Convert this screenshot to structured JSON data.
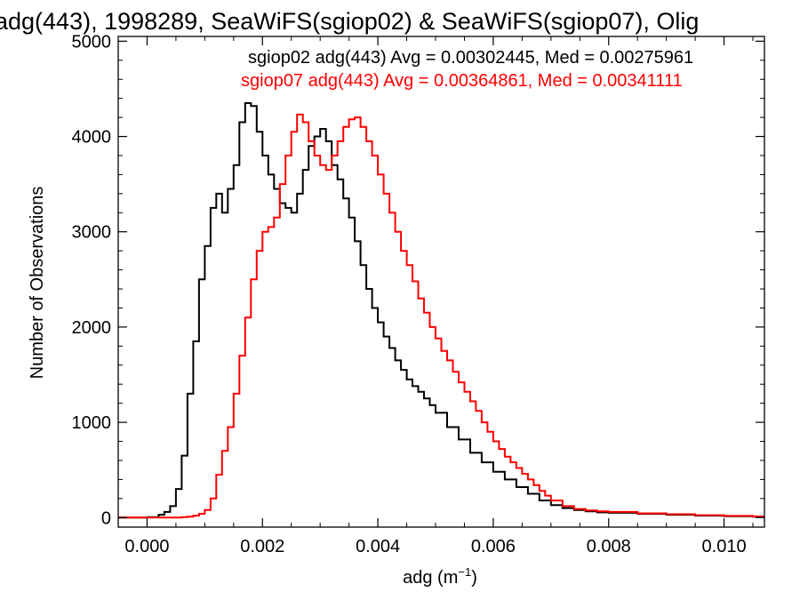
{
  "chart_data": {
    "type": "line",
    "title": "adg(443), 1998289, SeaWiFS(sgiop02) & SeaWiFS(sgiop07), Olig",
    "xlabel": "adg (m",
    "xlabel_sup": "−1",
    "xlabel_close": ")",
    "ylabel": "Number of Observations",
    "xlim": [
      -0.0005,
      0.0107
    ],
    "ylim": [
      -100,
      5050
    ],
    "xticks": [
      0.0,
      0.002,
      0.004,
      0.006,
      0.008,
      0.01
    ],
    "xtick_labels": [
      "0.000",
      "0.002",
      "0.004",
      "0.006",
      "0.008",
      "0.010"
    ],
    "yticks": [
      0,
      1000,
      2000,
      3000,
      4000,
      5000
    ],
    "ytick_labels": [
      "0",
      "1000",
      "2000",
      "3000",
      "4000",
      "5000"
    ],
    "grid": false,
    "legend_position": "top-right",
    "series": [
      {
        "name": "sgiop02 adg(443) Avg = 0.00302445, Med = 0.00275961",
        "color": "#000000",
        "points": [
          [
            -0.0005,
            0
          ],
          [
            0.0,
            5
          ],
          [
            0.0002,
            30
          ],
          [
            0.0003,
            60
          ],
          [
            0.0004,
            120
          ],
          [
            0.0005,
            300
          ],
          [
            0.0006,
            650
          ],
          [
            0.0007,
            1300
          ],
          [
            0.0008,
            1850
          ],
          [
            0.0009,
            2500
          ],
          [
            0.001,
            2850
          ],
          [
            0.0011,
            3250
          ],
          [
            0.0012,
            3400
          ],
          [
            0.0013,
            3200
          ],
          [
            0.0014,
            3450
          ],
          [
            0.0015,
            3700
          ],
          [
            0.0016,
            4150
          ],
          [
            0.0017,
            4350
          ],
          [
            0.0018,
            4320
          ],
          [
            0.0019,
            4050
          ],
          [
            0.002,
            3800
          ],
          [
            0.0021,
            3600
          ],
          [
            0.0022,
            3450
          ],
          [
            0.0023,
            3300
          ],
          [
            0.0024,
            3250
          ],
          [
            0.0025,
            3200
          ],
          [
            0.0026,
            3400
          ],
          [
            0.0027,
            3650
          ],
          [
            0.0028,
            3900
          ],
          [
            0.0029,
            4000
          ],
          [
            0.003,
            4080
          ],
          [
            0.0031,
            3950
          ],
          [
            0.0032,
            3700
          ],
          [
            0.0033,
            3550
          ],
          [
            0.0034,
            3350
          ],
          [
            0.0035,
            3150
          ],
          [
            0.0036,
            2900
          ],
          [
            0.0037,
            2650
          ],
          [
            0.0038,
            2400
          ],
          [
            0.0039,
            2200
          ],
          [
            0.004,
            2050
          ],
          [
            0.0041,
            1900
          ],
          [
            0.0042,
            1780
          ],
          [
            0.0043,
            1650
          ],
          [
            0.0044,
            1550
          ],
          [
            0.0045,
            1450
          ],
          [
            0.0046,
            1380
          ],
          [
            0.0047,
            1320
          ],
          [
            0.0048,
            1250
          ],
          [
            0.0049,
            1180
          ],
          [
            0.005,
            1100
          ],
          [
            0.0052,
            950
          ],
          [
            0.0054,
            820
          ],
          [
            0.0056,
            680
          ],
          [
            0.0058,
            580
          ],
          [
            0.006,
            480
          ],
          [
            0.0062,
            400
          ],
          [
            0.0064,
            320
          ],
          [
            0.0066,
            250
          ],
          [
            0.0068,
            180
          ],
          [
            0.007,
            130
          ],
          [
            0.0072,
            100
          ],
          [
            0.0074,
            80
          ],
          [
            0.0076,
            65
          ],
          [
            0.0078,
            55
          ],
          [
            0.008,
            50
          ],
          [
            0.0085,
            40
          ],
          [
            0.009,
            30
          ],
          [
            0.0095,
            20
          ],
          [
            0.01,
            15
          ],
          [
            0.0105,
            10
          ]
        ]
      },
      {
        "name": "sgiop07 adg(443) Avg = 0.00364861, Med = 0.00341111",
        "color": "#ff0000",
        "points": [
          [
            -0.0005,
            0
          ],
          [
            0.0005,
            0
          ],
          [
            0.0006,
            5
          ],
          [
            0.0007,
            10
          ],
          [
            0.0008,
            20
          ],
          [
            0.0009,
            40
          ],
          [
            0.001,
            80
          ],
          [
            0.0011,
            200
          ],
          [
            0.0012,
            450
          ],
          [
            0.0013,
            700
          ],
          [
            0.0014,
            950
          ],
          [
            0.0015,
            1300
          ],
          [
            0.0016,
            1700
          ],
          [
            0.0017,
            2100
          ],
          [
            0.0018,
            2500
          ],
          [
            0.0019,
            2800
          ],
          [
            0.002,
            3000
          ],
          [
            0.0021,
            3050
          ],
          [
            0.0022,
            3150
          ],
          [
            0.0023,
            3500
          ],
          [
            0.0024,
            3800
          ],
          [
            0.0025,
            4050
          ],
          [
            0.0026,
            4230
          ],
          [
            0.0027,
            4150
          ],
          [
            0.0028,
            3950
          ],
          [
            0.0029,
            3800
          ],
          [
            0.003,
            3700
          ],
          [
            0.0031,
            3650
          ],
          [
            0.0032,
            3800
          ],
          [
            0.0033,
            3950
          ],
          [
            0.0034,
            4100
          ],
          [
            0.0035,
            4180
          ],
          [
            0.0036,
            4200
          ],
          [
            0.0037,
            4100
          ],
          [
            0.0038,
            3950
          ],
          [
            0.0039,
            3800
          ],
          [
            0.004,
            3600
          ],
          [
            0.0041,
            3400
          ],
          [
            0.0042,
            3200
          ],
          [
            0.0043,
            3000
          ],
          [
            0.0044,
            2800
          ],
          [
            0.0045,
            2650
          ],
          [
            0.0046,
            2480
          ],
          [
            0.0047,
            2300
          ],
          [
            0.0048,
            2150
          ],
          [
            0.0049,
            2000
          ],
          [
            0.005,
            1880
          ],
          [
            0.0051,
            1750
          ],
          [
            0.0052,
            1650
          ],
          [
            0.0053,
            1530
          ],
          [
            0.0054,
            1420
          ],
          [
            0.0055,
            1320
          ],
          [
            0.0056,
            1220
          ],
          [
            0.0057,
            1120
          ],
          [
            0.0058,
            1000
          ],
          [
            0.0059,
            900
          ],
          [
            0.006,
            800
          ],
          [
            0.0061,
            720
          ],
          [
            0.0062,
            640
          ],
          [
            0.0063,
            580
          ],
          [
            0.0064,
            520
          ],
          [
            0.0065,
            460
          ],
          [
            0.0066,
            400
          ],
          [
            0.0067,
            340
          ],
          [
            0.0068,
            280
          ],
          [
            0.0069,
            230
          ],
          [
            0.007,
            180
          ],
          [
            0.0072,
            120
          ],
          [
            0.0074,
            90
          ],
          [
            0.0076,
            75
          ],
          [
            0.0078,
            65
          ],
          [
            0.008,
            60
          ],
          [
            0.0085,
            45
          ],
          [
            0.009,
            35
          ],
          [
            0.0095,
            25
          ],
          [
            0.01,
            18
          ],
          [
            0.0105,
            12
          ]
        ]
      }
    ]
  }
}
